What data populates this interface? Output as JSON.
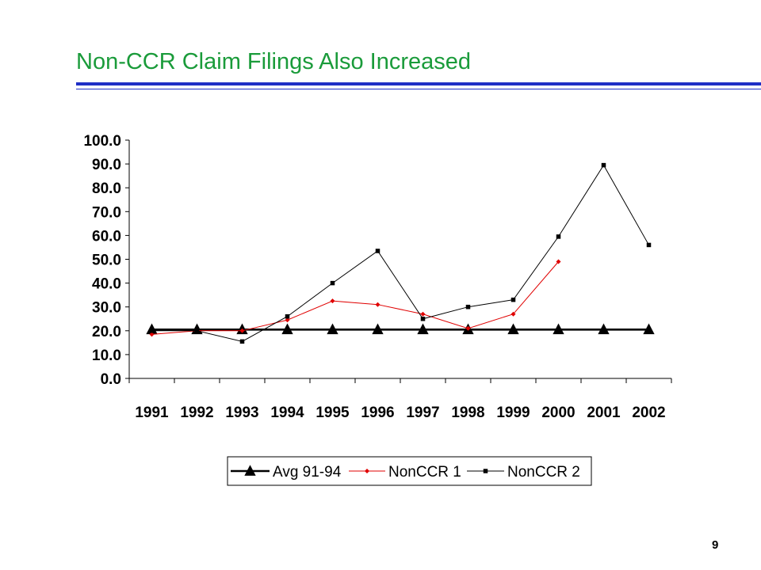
{
  "slide": {
    "title": "Non-CCR Claim Filings Also Increased",
    "page_number": "9",
    "title_color": "#1a9b3a",
    "rule_color": "#1f2fc6"
  },
  "chart_data": {
    "type": "line",
    "title": "",
    "xlabel": "",
    "ylabel": "",
    "categories": [
      "1991",
      "1992",
      "1993",
      "1994",
      "1995",
      "1996",
      "1997",
      "1998",
      "1999",
      "2000",
      "2001",
      "2002"
    ],
    "ylim": [
      0,
      100
    ],
    "yticks": [
      "0.0",
      "10.0",
      "20.0",
      "30.0",
      "40.0",
      "50.0",
      "60.0",
      "70.0",
      "80.0",
      "90.0",
      "100.0"
    ],
    "grid": false,
    "legend_position": "bottom",
    "series": [
      {
        "name": "Avg  91-94",
        "marker": "triangle",
        "color": "#000000",
        "values": [
          20.5,
          20.5,
          20.5,
          20.5,
          20.5,
          20.5,
          20.5,
          20.5,
          20.5,
          20.5,
          20.5,
          20.5
        ]
      },
      {
        "name": "NonCCR 1",
        "marker": "diamond",
        "color": "#e00000",
        "values": [
          18.5,
          20.0,
          20.0,
          24.5,
          32.5,
          31.0,
          27.0,
          21.0,
          27.0,
          49.0,
          null,
          null
        ]
      },
      {
        "name": "NonCCR 2",
        "marker": "square",
        "color": "#000000",
        "values": [
          20.0,
          20.0,
          15.5,
          26.0,
          40.0,
          53.5,
          25.0,
          30.0,
          33.0,
          59.5,
          89.5,
          56.0
        ]
      }
    ]
  }
}
